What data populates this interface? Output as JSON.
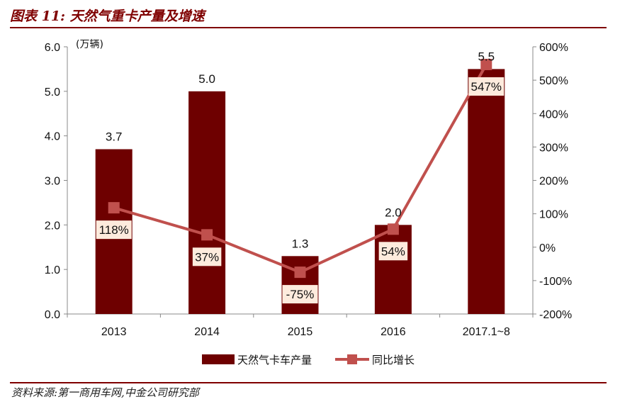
{
  "title": "图表 11: 天然气重卡产量及增速",
  "source": "资料来源:第一商用车网,中金公司研究部",
  "colors": {
    "bar": "#6e0000",
    "line": "#c0504d",
    "label_bg": "#fdebdd",
    "rule": "#7f0000"
  },
  "chart_data": {
    "type": "bar",
    "categories": [
      "2013",
      "2014",
      "2015",
      "2016",
      "2017.1~8"
    ],
    "series": [
      {
        "name": "天然气卡车产量",
        "type": "bar",
        "axis": "left",
        "values": [
          3.7,
          5.0,
          1.3,
          2.0,
          5.5
        ],
        "labels": [
          "3.7",
          "5.0",
          "1.3",
          "2.0",
          "5.5"
        ]
      },
      {
        "name": "同比增长",
        "type": "line",
        "axis": "right",
        "values": [
          118,
          37,
          -75,
          54,
          547
        ],
        "labels": [
          "118%",
          "37%",
          "-75%",
          "54%",
          "547%"
        ]
      }
    ],
    "y_left": {
      "unit": "(万辆)",
      "ylim": [
        0,
        6
      ],
      "ticks": [
        "0.0",
        "1.0",
        "2.0",
        "3.0",
        "4.0",
        "5.0",
        "6.0"
      ]
    },
    "y_right": {
      "ylim": [
        -200,
        600
      ],
      "ticks": [
        "-200%",
        "-100%",
        "0%",
        "100%",
        "200%",
        "300%",
        "400%",
        "500%",
        "600%"
      ]
    },
    "legend_position": "bottom",
    "grid": false
  }
}
